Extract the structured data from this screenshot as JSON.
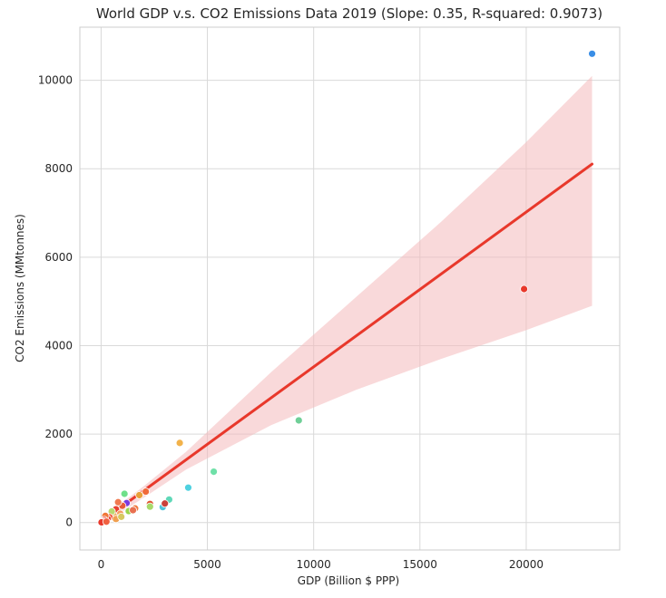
{
  "chart_data": {
    "type": "scatter",
    "title": "World GDP v.s. CO2 Emissions Data 2019 (Slope: 0.35, R-squared: 0.9073)",
    "xlabel": "GDP (Billion $ PPP)",
    "ylabel": "CO2 Emissions (MMtonnes)",
    "xlim": [
      -1000,
      24400
    ],
    "ylim": [
      -620,
      11200
    ],
    "xticks": [
      0,
      5000,
      10000,
      15000,
      20000
    ],
    "yticks": [
      0,
      2000,
      4000,
      6000,
      8000,
      10000
    ],
    "grid": true,
    "legend": "none",
    "regression": {
      "slope": 0.35,
      "intercept": 20,
      "x_range": [
        0,
        23100
      ],
      "line_color": "#e8382b",
      "ci_color": "#f4b9bc",
      "ci_band": [
        {
          "x": 0,
          "lower": -60,
          "upper": 90
        },
        {
          "x": 2000,
          "lower": 560,
          "upper": 820
        },
        {
          "x": 4000,
          "lower": 1200,
          "upper": 1600
        },
        {
          "x": 8000,
          "lower": 2200,
          "upper": 3400
        },
        {
          "x": 12000,
          "lower": 3000,
          "upper": 5100
        },
        {
          "x": 16000,
          "lower": 3700,
          "upper": 6800
        },
        {
          "x": 20000,
          "lower": 4350,
          "upper": 8600
        },
        {
          "x": 23100,
          "lower": 4900,
          "upper": 10100
        }
      ]
    },
    "points": [
      {
        "x": 23100,
        "y": 10600,
        "color": "#3a8ee6"
      },
      {
        "x": 19900,
        "y": 5280,
        "color": "#e8382b"
      },
      {
        "x": 9300,
        "y": 2310,
        "color": "#6fcf97"
      },
      {
        "x": 3700,
        "y": 1800,
        "color": "#f2b24a"
      },
      {
        "x": 5300,
        "y": 1150,
        "color": "#6fe0a8"
      },
      {
        "x": 4100,
        "y": 790,
        "color": "#4fd1e0"
      },
      {
        "x": 3200,
        "y": 520,
        "color": "#5fd8b8"
      },
      {
        "x": 2900,
        "y": 350,
        "color": "#4fc3d9"
      },
      {
        "x": 3000,
        "y": 430,
        "color": "#c9413a"
      },
      {
        "x": 2300,
        "y": 420,
        "color": "#e05530"
      },
      {
        "x": 2300,
        "y": 360,
        "color": "#a8d86a"
      },
      {
        "x": 2100,
        "y": 700,
        "color": "#f06a3a"
      },
      {
        "x": 1800,
        "y": 620,
        "color": "#e8a03a"
      },
      {
        "x": 1600,
        "y": 320,
        "color": "#f07a40"
      },
      {
        "x": 1100,
        "y": 650,
        "color": "#6fe08a"
      },
      {
        "x": 1200,
        "y": 440,
        "color": "#7a3ae0"
      },
      {
        "x": 1300,
        "y": 260,
        "color": "#9ad64a"
      },
      {
        "x": 1000,
        "y": 380,
        "color": "#e85a3a"
      },
      {
        "x": 800,
        "y": 460,
        "color": "#f07a50"
      },
      {
        "x": 700,
        "y": 300,
        "color": "#e84030"
      },
      {
        "x": 900,
        "y": 200,
        "color": "#f2a060"
      },
      {
        "x": 600,
        "y": 150,
        "color": "#e8a850"
      },
      {
        "x": 500,
        "y": 250,
        "color": "#b8d870"
      },
      {
        "x": 400,
        "y": 120,
        "color": "#f05a3a"
      },
      {
        "x": 300,
        "y": 90,
        "color": "#e83a2b"
      },
      {
        "x": 200,
        "y": 150,
        "color": "#f0783a"
      },
      {
        "x": 150,
        "y": 60,
        "color": "#e8382b"
      },
      {
        "x": 100,
        "y": 30,
        "color": "#ec4a30"
      },
      {
        "x": 50,
        "y": 10,
        "color": "#e8382b"
      },
      {
        "x": 20,
        "y": 5,
        "color": "#e8382b"
      },
      {
        "x": 250,
        "y": 20,
        "color": "#f06040"
      },
      {
        "x": 700,
        "y": 80,
        "color": "#f0a050"
      },
      {
        "x": 950,
        "y": 130,
        "color": "#d8c860"
      },
      {
        "x": 1500,
        "y": 280,
        "color": "#e87050"
      }
    ]
  }
}
